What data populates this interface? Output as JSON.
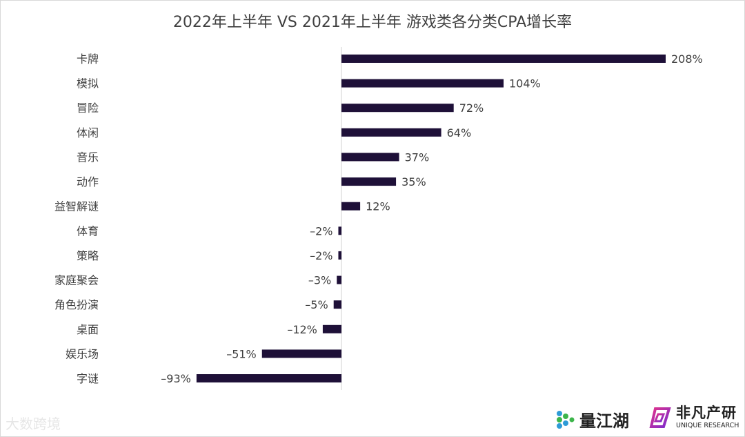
{
  "chart_data": {
    "type": "bar",
    "orientation": "horizontal",
    "title": "2022年上半年 VS 2021年上半年 游戏类各分类CPA增长率",
    "categories": [
      "卡牌",
      "模拟",
      "冒险",
      "体闲",
      "音乐",
      "动作",
      "益智解谜",
      "体育",
      "策略",
      "家庭聚会",
      "角色扮演",
      "桌面",
      "娱乐场",
      "字谜"
    ],
    "values": [
      208,
      104,
      72,
      64,
      37,
      35,
      12,
      -2,
      -2,
      -3,
      -5,
      -12,
      -51,
      -93
    ],
    "value_labels": [
      "208%",
      "104%",
      "72%",
      "64%",
      "37%",
      "35%",
      "12%",
      "–2%",
      "–2%",
      "–3%",
      "–5%",
      "–12%",
      "–51%",
      "–93%"
    ],
    "unit": "%",
    "xlim": [
      -93,
      208
    ],
    "grid": false,
    "legend": "none",
    "bar_color": "#1e1038"
  },
  "watermark": "大数跨境",
  "logos": {
    "liangjianghu": "量江湖",
    "unique_cn": "非凡产研",
    "unique_en": "UNIQUE RESEARCH"
  }
}
